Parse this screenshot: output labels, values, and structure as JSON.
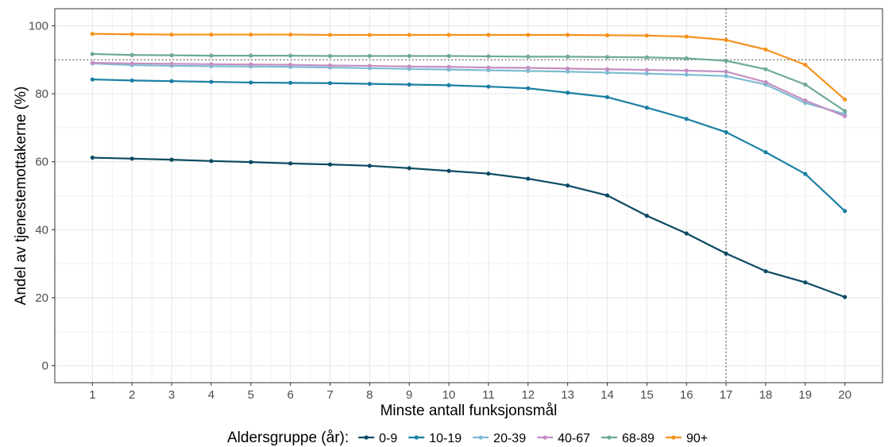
{
  "chart_data": {
    "type": "line",
    "xlabel": "Minste antall funksjonsmål",
    "ylabel": "Andel av tjenestemottakerne (%)",
    "x": [
      1,
      2,
      3,
      4,
      5,
      6,
      7,
      8,
      9,
      10,
      11,
      12,
      13,
      14,
      15,
      16,
      17,
      18,
      19,
      20
    ],
    "x_ticks": [
      "1",
      "2",
      "3",
      "4",
      "5",
      "6",
      "7",
      "8",
      "9",
      "10",
      "11",
      "12",
      "13",
      "14",
      "15",
      "16",
      "17",
      "18",
      "19",
      "20"
    ],
    "xlim": [
      0.05,
      20.95
    ],
    "ylim": [
      -5,
      105
    ],
    "y_ticks": [
      0,
      20,
      40,
      60,
      80,
      100
    ],
    "y_tick_labels": [
      "0",
      "20",
      "40",
      "60",
      "80",
      "100"
    ],
    "grid": true,
    "legend_position": "bottom",
    "legend_title": "Aldersgruppe (år):",
    "reference_lines": {
      "horizontal_y": 90,
      "vertical_x": 17,
      "style": "dotted"
    },
    "series": [
      {
        "name": "0-9",
        "color": "#0a4a63",
        "values": [
          61.2,
          60.9,
          60.6,
          60.2,
          59.9,
          59.5,
          59.2,
          58.8,
          58.1,
          57.3,
          56.5,
          55.0,
          53.0,
          50.1,
          44.1,
          38.9,
          33.0,
          27.8,
          24.5,
          20.2
        ]
      },
      {
        "name": "10-19",
        "color": "#1a7fa3",
        "values": [
          84.2,
          83.9,
          83.7,
          83.5,
          83.3,
          83.2,
          83.1,
          82.9,
          82.7,
          82.5,
          82.1,
          81.6,
          80.3,
          79.0,
          75.9,
          72.6,
          68.7,
          62.8,
          56.4,
          45.5
        ]
      },
      {
        "name": "20-39",
        "color": "#7dbcd3",
        "values": [
          88.9,
          88.4,
          88.2,
          88.1,
          88.0,
          87.9,
          87.7,
          87.5,
          87.3,
          87.1,
          86.9,
          86.7,
          86.5,
          86.2,
          85.9,
          85.6,
          85.2,
          82.7,
          77.3,
          74.0
        ]
      },
      {
        "name": "40-67",
        "color": "#c48fc2",
        "values": [
          89.1,
          88.9,
          88.8,
          88.7,
          88.6,
          88.5,
          88.3,
          88.2,
          88.0,
          87.9,
          87.7,
          87.6,
          87.4,
          87.2,
          87.0,
          86.8,
          86.5,
          83.4,
          78.0,
          73.4
        ]
      },
      {
        "name": "68-89",
        "color": "#6fa99a",
        "values": [
          91.7,
          91.4,
          91.3,
          91.2,
          91.2,
          91.2,
          91.1,
          91.1,
          91.1,
          91.1,
          91.0,
          90.9,
          90.9,
          90.8,
          90.7,
          90.4,
          89.7,
          87.2,
          82.7,
          74.9
        ]
      },
      {
        "name": "90+",
        "color": "#f5921e",
        "values": [
          97.6,
          97.5,
          97.4,
          97.4,
          97.4,
          97.4,
          97.3,
          97.3,
          97.3,
          97.3,
          97.3,
          97.3,
          97.3,
          97.2,
          97.1,
          96.8,
          95.8,
          93.0,
          88.5,
          78.3
        ]
      }
    ]
  }
}
